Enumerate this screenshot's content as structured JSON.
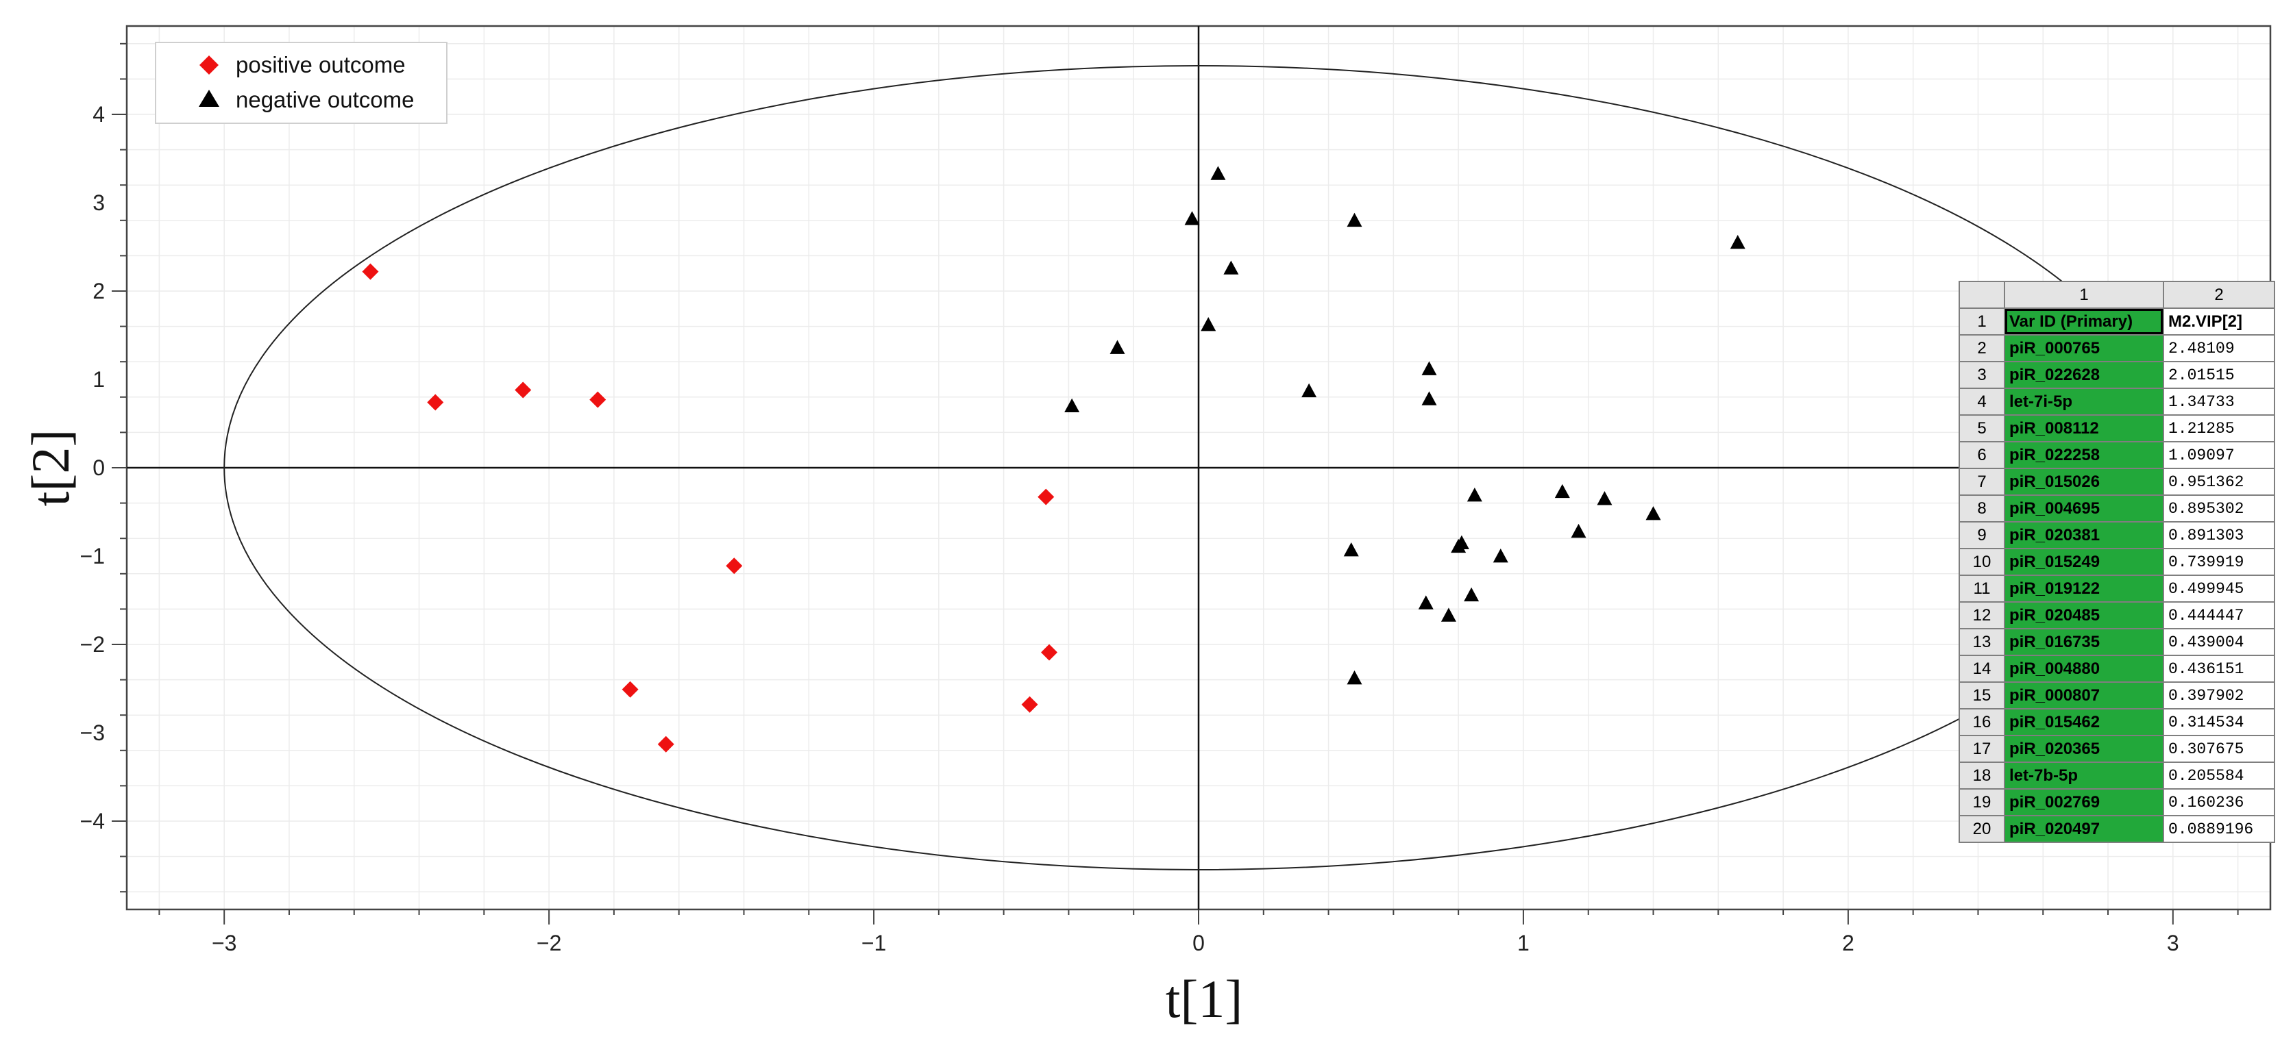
{
  "chart_data": {
    "type": "scatter",
    "xlabel": "t[1]",
    "ylabel": "t[2]",
    "xlim": [
      -3.3,
      3.3
    ],
    "ylim": [
      -5,
      5
    ],
    "xticks": [
      -3,
      -2,
      -1,
      0,
      1,
      2,
      3
    ],
    "yticks": [
      -4,
      -3,
      -2,
      -1,
      0,
      1,
      2,
      3,
      4
    ],
    "grid": true,
    "legend_position": "top-left",
    "ellipse": {
      "cx": 0,
      "cy": 0,
      "rx": 3.0,
      "ry": 4.55
    },
    "series": [
      {
        "name": "positive outcome",
        "marker": "diamond",
        "color": "#ee1111",
        "points": [
          [
            -2.55,
            2.22
          ],
          [
            -2.35,
            0.74
          ],
          [
            -2.08,
            0.88
          ],
          [
            -1.85,
            0.77
          ],
          [
            -1.43,
            -1.11
          ],
          [
            -1.75,
            -2.51
          ],
          [
            -1.64,
            -3.13
          ],
          [
            -0.47,
            -0.33
          ],
          [
            -0.46,
            -2.09
          ],
          [
            -0.52,
            -2.68
          ]
        ]
      },
      {
        "name": "negative outcome",
        "marker": "triangle",
        "color": "#000000",
        "points": [
          [
            0.06,
            3.33
          ],
          [
            -0.02,
            2.82
          ],
          [
            0.48,
            2.8
          ],
          [
            0.1,
            2.26
          ],
          [
            0.03,
            1.62
          ],
          [
            -0.25,
            1.36
          ],
          [
            -0.39,
            0.7
          ],
          [
            0.34,
            0.87
          ],
          [
            0.71,
            1.12
          ],
          [
            0.71,
            0.78
          ],
          [
            1.66,
            2.55
          ],
          [
            0.85,
            -0.31
          ],
          [
            1.12,
            -0.27
          ],
          [
            1.25,
            -0.35
          ],
          [
            1.4,
            -0.52
          ],
          [
            1.17,
            -0.72
          ],
          [
            0.47,
            -0.93
          ],
          [
            0.81,
            -0.85
          ],
          [
            0.8,
            -0.89
          ],
          [
            0.93,
            -1.0
          ],
          [
            0.7,
            -1.53
          ],
          [
            0.84,
            -1.44
          ],
          [
            0.77,
            -1.67
          ],
          [
            0.48,
            -2.38
          ]
        ]
      }
    ]
  },
  "vip_table": {
    "col_headers": [
      "1",
      "2"
    ],
    "header_row": {
      "num": "1",
      "id": "Var ID (Primary)",
      "value": "M2.VIP[2]"
    },
    "rows": [
      {
        "num": "2",
        "id": "piR_000765",
        "value": "2.48109"
      },
      {
        "num": "3",
        "id": "piR_022628",
        "value": "2.01515"
      },
      {
        "num": "4",
        "id": "let-7i-5p",
        "value": "1.34733"
      },
      {
        "num": "5",
        "id": "piR_008112",
        "value": "1.21285"
      },
      {
        "num": "6",
        "id": "piR_022258",
        "value": "1.09097"
      },
      {
        "num": "7",
        "id": "piR_015026",
        "value": "0.951362"
      },
      {
        "num": "8",
        "id": "piR_004695",
        "value": "0.895302"
      },
      {
        "num": "9",
        "id": "piR_020381",
        "value": "0.891303"
      },
      {
        "num": "10",
        "id": "piR_015249",
        "value": "0.739919"
      },
      {
        "num": "11",
        "id": "piR_019122",
        "value": "0.499945"
      },
      {
        "num": "12",
        "id": "piR_020485",
        "value": "0.444447"
      },
      {
        "num": "13",
        "id": "piR_016735",
        "value": "0.439004"
      },
      {
        "num": "14",
        "id": "piR_004880",
        "value": "0.436151"
      },
      {
        "num": "15",
        "id": "piR_000807",
        "value": "0.397902"
      },
      {
        "num": "16",
        "id": "piR_015462",
        "value": "0.314534"
      },
      {
        "num": "17",
        "id": "piR_020365",
        "value": "0.307675"
      },
      {
        "num": "18",
        "id": "let-7b-5p",
        "value": "0.205584"
      },
      {
        "num": "19",
        "id": "piR_002769",
        "value": "0.160236"
      },
      {
        "num": "20",
        "id": "piR_020497",
        "value": "0.0889196"
      }
    ]
  }
}
